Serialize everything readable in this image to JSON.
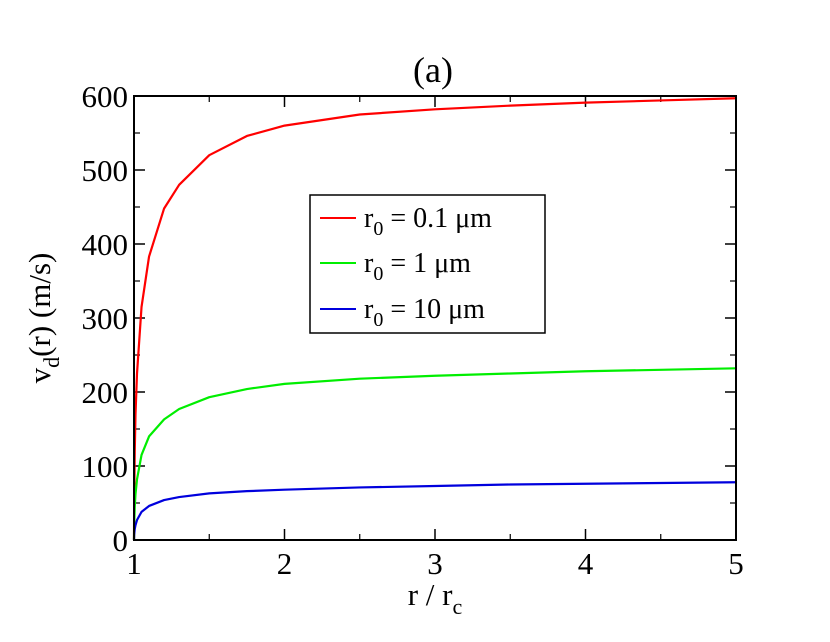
{
  "chart_data": {
    "type": "line",
    "title": "(a)",
    "xlabel": {
      "base": "r / r",
      "sub": "c"
    },
    "ylabel": {
      "base": "v",
      "sub": "d",
      "rest": "(r) (m/s)"
    },
    "xlim": [
      1,
      5
    ],
    "ylim": [
      0,
      600
    ],
    "xticks": [
      1,
      2,
      3,
      4,
      5
    ],
    "yticks": [
      0,
      100,
      200,
      300,
      400,
      500,
      600
    ],
    "grid": false,
    "legend_position": "center",
    "series": [
      {
        "legend": {
          "pre": "r",
          "sub": "0",
          "post": " = 0.1 μm"
        },
        "color": "#ff0000",
        "x": [
          1.0,
          1.001,
          1.005,
          1.01,
          1.02,
          1.05,
          1.1,
          1.2,
          1.3,
          1.5,
          1.75,
          2.0,
          2.5,
          3.0,
          3.5,
          4.0,
          4.5,
          5.0
        ],
        "y": [
          0,
          50,
          120,
          170,
          225,
          315,
          383,
          448,
          480,
          520,
          546,
          560,
          575,
          582,
          587,
          591,
          594,
          597
        ]
      },
      {
        "legend": {
          "pre": "r",
          "sub": "0",
          "post": " = 1 μm"
        },
        "color": "#00ee00",
        "x": [
          1.0,
          1.001,
          1.005,
          1.01,
          1.02,
          1.05,
          1.1,
          1.2,
          1.3,
          1.5,
          1.75,
          2.0,
          2.5,
          3.0,
          3.5,
          4.0,
          4.5,
          5.0
        ],
        "y": [
          0,
          20,
          45,
          62,
          82,
          115,
          140,
          163,
          177,
          193,
          204,
          211,
          218,
          222,
          225,
          228,
          230,
          232
        ]
      },
      {
        "legend": {
          "pre": "r",
          "sub": "0",
          "post": " = 10 μm"
        },
        "color": "#0000dd",
        "x": [
          1.0,
          1.001,
          1.005,
          1.01,
          1.02,
          1.05,
          1.1,
          1.2,
          1.3,
          1.5,
          1.75,
          2.0,
          2.5,
          3.0,
          3.5,
          4.0,
          4.5,
          5.0
        ],
        "y": [
          0,
          7,
          15,
          20,
          27,
          38,
          46,
          54,
          58,
          63,
          66,
          68,
          71,
          73,
          75,
          76,
          77,
          78
        ]
      }
    ]
  }
}
